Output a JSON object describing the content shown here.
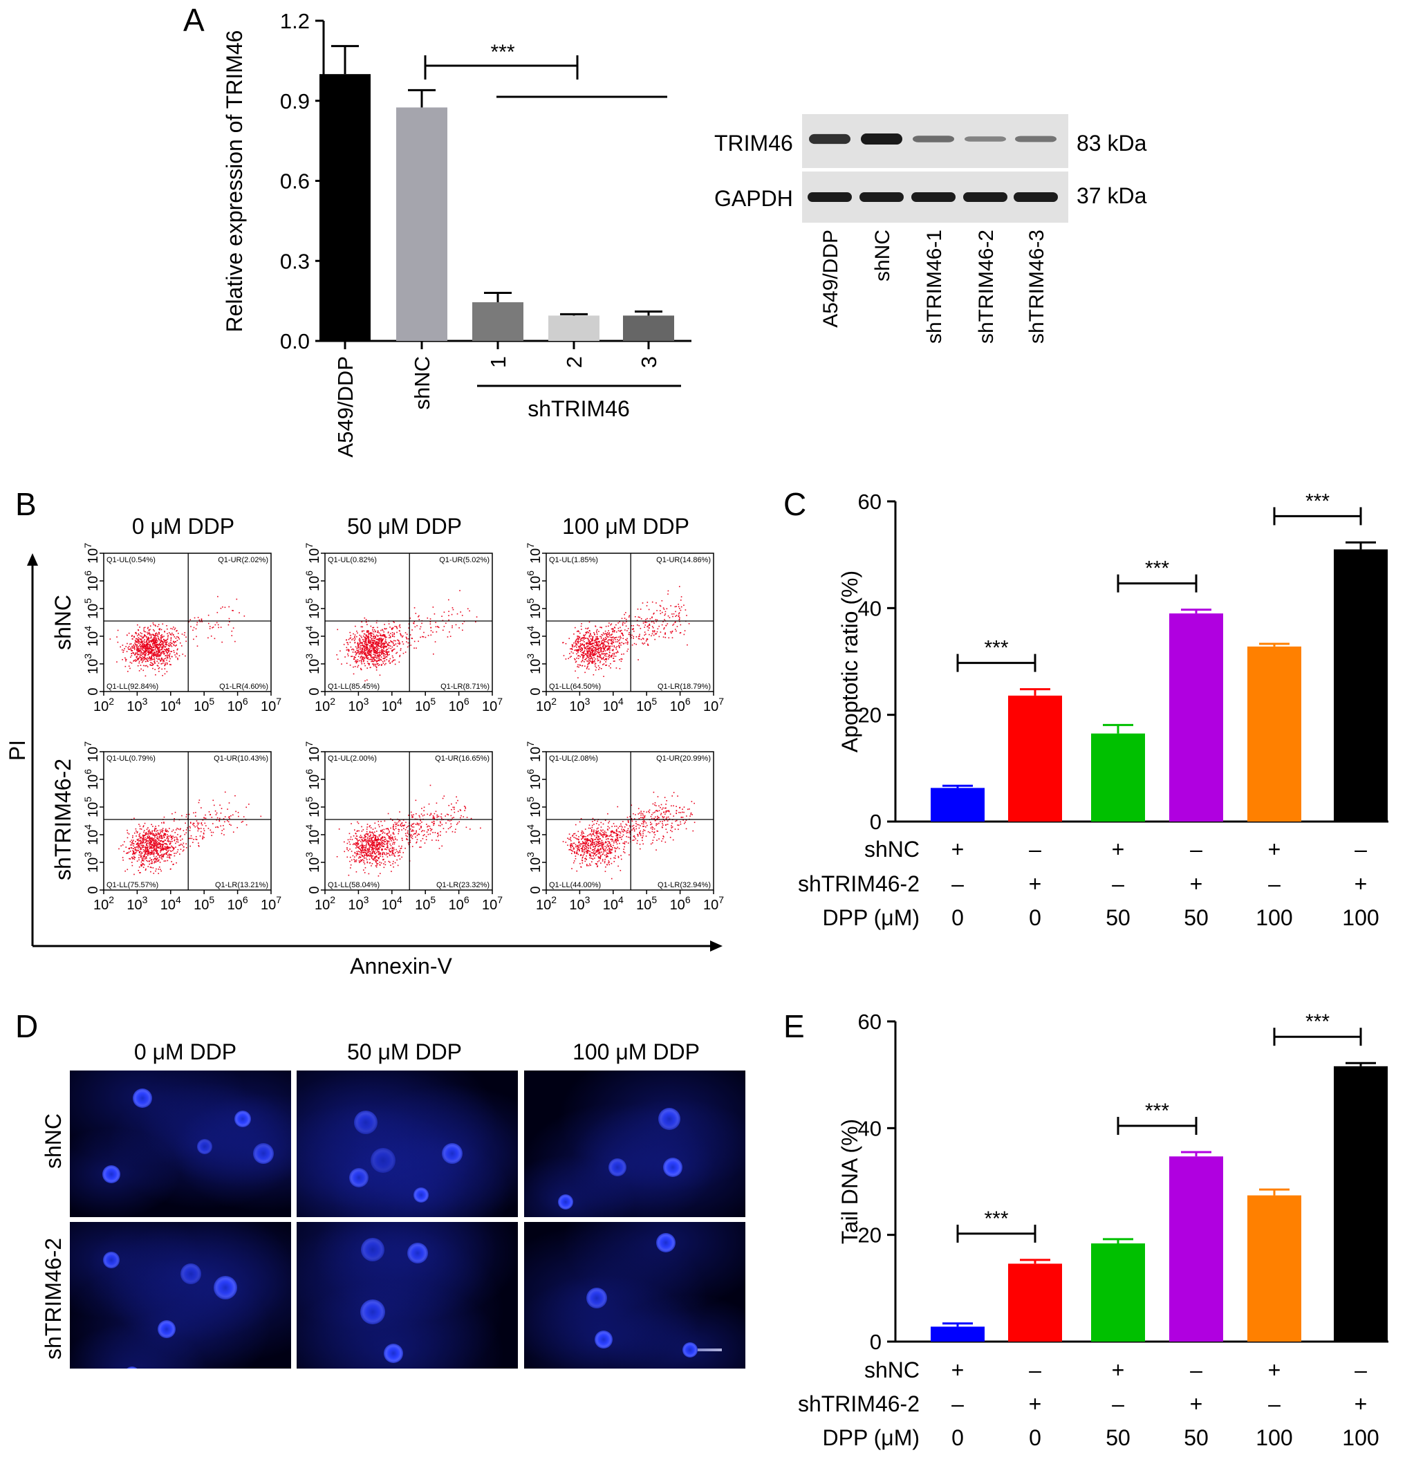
{
  "panel_letters": [
    "A",
    "B",
    "C",
    "D",
    "E"
  ],
  "colors": {
    "blue": "#0000ff",
    "red": "#ff0000",
    "green": "#00c000",
    "purple": "#b000e0",
    "orange": "#ff8000",
    "black": "#000000",
    "dot_red": "#e8001a",
    "gray_dark": "#7a7a7a",
    "gray_light": "#cfcfcf",
    "gray_mid": "#a5a5ad"
  },
  "chart_data": [
    {
      "id": "A",
      "type": "bar",
      "ylabel": "Relative expression of TRIM46",
      "ylim": [
        0,
        1.2
      ],
      "yticks": [
        "0.0",
        "0.3",
        "0.6",
        "0.9",
        "1.2"
      ],
      "categories": [
        "A549/DDP",
        "shNC",
        "1",
        "2",
        "3"
      ],
      "group_label": "shTRIM46",
      "values": [
        1.0,
        0.875,
        0.145,
        0.095,
        0.095
      ],
      "errors": [
        0.105,
        0.065,
        0.035,
        0.005,
        0.015
      ],
      "significance": [
        "***"
      ]
    },
    {
      "id": "C",
      "type": "bar",
      "ylabel": "Apoptotic ratio (%)",
      "ylim": [
        0,
        60
      ],
      "yticks": [
        "0",
        "20",
        "40",
        "60"
      ],
      "values": [
        6.3,
        23.6,
        16.5,
        39.0,
        32.8,
        51.0
      ],
      "errors": [
        0.4,
        1.2,
        1.6,
        0.7,
        0.5,
        1.3
      ],
      "significance": [
        "***",
        "***",
        "***"
      ],
      "conditions": {
        "row_labels": [
          "shNC",
          "shTRIM46-2",
          "DPP (μM)"
        ],
        "rows": [
          [
            "+",
            "–",
            "+",
            "–",
            "+",
            "–"
          ],
          [
            "–",
            "+",
            "–",
            "+",
            "–",
            "+"
          ],
          [
            "0",
            "0",
            "50",
            "50",
            "100",
            "100"
          ]
        ]
      }
    },
    {
      "id": "E",
      "type": "bar",
      "ylabel": "Tail DNA (%)",
      "ylim": [
        0,
        60
      ],
      "yticks": [
        "0",
        "20",
        "40",
        "60"
      ],
      "values": [
        2.8,
        14.6,
        18.4,
        34.7,
        27.4,
        51.6
      ],
      "errors": [
        0.6,
        0.7,
        0.8,
        0.8,
        1.1,
        0.6
      ],
      "significance": [
        "***",
        "***",
        "***"
      ],
      "conditions": {
        "row_labels": [
          "shNC",
          "shTRIM46-2",
          "DPP (μM)"
        ],
        "rows": [
          [
            "+",
            "–",
            "+",
            "–",
            "+",
            "–"
          ],
          [
            "–",
            "+",
            "–",
            "+",
            "–",
            "+"
          ],
          [
            "0",
            "0",
            "50",
            "50",
            "100",
            "100"
          ]
        ]
      }
    }
  ],
  "western_blot": {
    "bands": [
      "TRIM46",
      "GAPDH"
    ],
    "sizes": [
      "83 kDa",
      "37 kDa"
    ],
    "lanes": [
      "A549/DDP",
      "shNC",
      "shTRIM46-1",
      "shTRIM46-2",
      "shTRIM46-3"
    ],
    "trim46_intensity": [
      0.85,
      1.0,
      0.45,
      0.3,
      0.4
    ],
    "gapdh_intensity": [
      0.95,
      0.95,
      0.95,
      0.95,
      0.95
    ]
  },
  "flow": {
    "columns": [
      "0 μM DDP",
      "50 μM DDP",
      "100 μM DDP"
    ],
    "rows": [
      "shNC",
      "shTRIM46-2"
    ],
    "x_axis_label": "Annexin-V",
    "y_axis_label": "PI",
    "x_tick_exponents": [
      "2",
      "3",
      "4",
      "5",
      "6",
      "7"
    ],
    "y_tick_labels": [
      "0",
      "10",
      "10",
      "10",
      "10",
      "10"
    ],
    "y_tick_exponents": [
      "",
      "3",
      "4",
      "5",
      "6",
      "7"
    ],
    "tick_base": "10",
    "quadrants": [
      [
        "Q1-UL(0.54%)",
        "Q1-UR(2.02%)",
        "Q1-LL(92.84%)",
        "Q1-LR(4.60%)"
      ],
      [
        "Q1-UL(0.82%)",
        "Q1-UR(5.02%)",
        "Q1-LL(85.45%)",
        "Q1-LR(8.71%)"
      ],
      [
        "Q1-UL(1.85%)",
        "Q1-UR(14.86%)",
        "Q1-LL(64.50%)",
        "Q1-LR(18.79%)"
      ],
      [
        "Q1-UL(0.79%)",
        "Q1-UR(10.43%)",
        "Q1-LL(75.57%)",
        "Q1-LR(13.21%)"
      ],
      [
        "Q1-UL(2.00%)",
        "Q1-UR(16.65%)",
        "Q1-LL(58.04%)",
        "Q1-LR(23.32%)"
      ],
      [
        "Q1-UL(2.08%)",
        "Q1-UR(20.99%)",
        "Q1-LL(44.00%)",
        "Q1-LR(32.94%)"
      ]
    ]
  },
  "comet": {
    "columns": [
      "0 μM DDP",
      "50 μM DDP",
      "100 μM DDP"
    ],
    "rows": [
      "shNC",
      "shTRIM46-2"
    ]
  }
}
